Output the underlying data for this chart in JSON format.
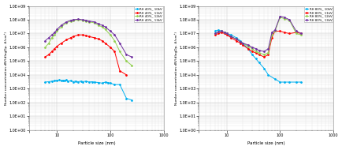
{
  "left_plot": {
    "xlabel": "Particle size (nm)",
    "ylabel": "Number concentration dN/(dlogDp, #/cm³)",
    "legend": [
      "RH 40%_ 10kV",
      "RH 40%_ 11kV",
      "RH 40%_ 12kV",
      "RH 40%_ 13kV"
    ],
    "colors": [
      "#00b0f0",
      "#ff0000",
      "#92d050",
      "#7030a0"
    ],
    "xlim": [
      3,
      1000
    ],
    "ylim": [
      1.0,
      1000000000.0
    ],
    "yticks": [
      1.0,
      10.0,
      100.0,
      1000.0,
      10000.0,
      100000.0,
      1000000.0,
      10000000.0,
      100000000.0,
      1000000000.0
    ],
    "ytick_labels": [
      "1.0E+00",
      "1.0E+01",
      "1.0E+02",
      "1.0E+03",
      "1.0E+04",
      "1.0E+05",
      "1.0E+06",
      "1.0E+07",
      "1.0E+08",
      "1.0E+09"
    ],
    "series": {
      "10kV": {
        "x": [
          6,
          7,
          8,
          9,
          10,
          11,
          12,
          13,
          14,
          15,
          16,
          18,
          20,
          22,
          25,
          28,
          30,
          35,
          40,
          45,
          50,
          60,
          70,
          80,
          90,
          100,
          120,
          150,
          200,
          250
        ],
        "y": [
          3000.0,
          3200.0,
          3500.0,
          3800.0,
          4000.0,
          4200.0,
          3800.0,
          4000.0,
          3800.0,
          4200.0,
          3500.0,
          3800.0,
          3200.0,
          3500.0,
          3200.0,
          3500.0,
          3200.0,
          3500.0,
          3000.0,
          3200.0,
          3000.0,
          2800.0,
          2500.0,
          3000.0,
          2800.0,
          2500.0,
          2000.0,
          2000.0,
          200.0,
          150.0
        ]
      },
      "11kV": {
        "x": [
          6,
          7,
          8,
          9,
          10,
          12,
          15,
          18,
          20,
          25,
          30,
          35,
          40,
          50,
          60,
          70,
          80,
          100,
          120,
          150,
          200
        ],
        "y": [
          200000.0,
          300000.0,
          500000.0,
          800000.0,
          1200000.0,
          2000000.0,
          3500000.0,
          5000000.0,
          6000000.0,
          8000000.0,
          8000000.0,
          7000000.0,
          6000000.0,
          5000000.0,
          4000000.0,
          3000000.0,
          2000000.0,
          1000000.0,
          500000.0,
          20000.0,
          10000.0
        ]
      },
      "12kV": {
        "x": [
          6,
          7,
          8,
          9,
          10,
          12,
          15,
          18,
          20,
          25,
          30,
          35,
          40,
          50,
          60,
          70,
          80,
          100,
          120,
          150,
          200,
          250
        ],
        "y": [
          1000000.0,
          2000000.0,
          5000000.0,
          8000000.0,
          15000000.0,
          30000000.0,
          60000000.0,
          80000000.0,
          90000000.0,
          100000000.0,
          90000000.0,
          80000000.0,
          70000000.0,
          60000000.0,
          40000000.0,
          30000000.0,
          20000000.0,
          8000000.0,
          3000000.0,
          500000.0,
          100000.0,
          50000.0
        ]
      },
      "13kV": {
        "x": [
          6,
          7,
          8,
          9,
          10,
          12,
          15,
          18,
          20,
          25,
          30,
          35,
          40,
          50,
          60,
          70,
          80,
          100,
          120,
          150,
          200,
          250
        ],
        "y": [
          3000000.0,
          5000000.0,
          8000000.0,
          12000000.0,
          20000000.0,
          40000000.0,
          70000000.0,
          90000000.0,
          100000000.0,
          110000000.0,
          100000000.0,
          90000000.0,
          80000000.0,
          70000000.0,
          50000000.0,
          40000000.0,
          30000000.0,
          15000000.0,
          8000000.0,
          2000000.0,
          300000.0,
          200000.0
        ]
      }
    }
  },
  "right_plot": {
    "xlabel": "Particle size (nm)",
    "ylabel": "Number concentration dN/(dlogDp, #/cm³)",
    "legend": [
      "RH 80%_ 10kV",
      "RH 80%_ 11kV",
      "RH 80%_ 12kV",
      "RH 80%_ 13kV"
    ],
    "colors": [
      "#00b0f0",
      "#ff0000",
      "#92d050",
      "#7030a0"
    ],
    "xlim": [
      3,
      1000
    ],
    "ylim": [
      1.0,
      1000000000.0
    ],
    "yticks": [
      1.0,
      10.0,
      100.0,
      1000.0,
      10000.0,
      100000.0,
      1000000.0,
      10000000.0,
      100000000.0,
      1000000000.0
    ],
    "ytick_labels": [
      "1.0E+00",
      "1.0E+01",
      "1.0E+02",
      "1.0E+03",
      "1.0E+04",
      "1.0E+05",
      "1.0E+06",
      "1.0E+07",
      "1.0E+08",
      "1.0E+09"
    ],
    "series": {
      "10kV": {
        "x": [
          6,
          7,
          8,
          9,
          10,
          12,
          15,
          18,
          20,
          25,
          30,
          35,
          40,
          50,
          60,
          80,
          100,
          120,
          150,
          200,
          250
        ],
        "y": [
          15000000.0,
          18000000.0,
          15000000.0,
          12000000.0,
          10000000.0,
          8000000.0,
          5000000.0,
          3000000.0,
          2000000.0,
          800000.0,
          300000.0,
          150000.0,
          80000.0,
          30000.0,
          10000.0,
          5000.0,
          3000.0,
          3000.0,
          3000.0,
          3000.0,
          3000.0
        ]
      },
      "11kV": {
        "x": [
          6,
          7,
          8,
          9,
          10,
          12,
          15,
          18,
          20,
          25,
          30,
          35,
          40,
          50,
          60,
          70,
          80,
          100,
          120,
          150,
          200,
          250
        ],
        "y": [
          8000000.0,
          10000000.0,
          12000000.0,
          10000000.0,
          8000000.0,
          5000000.0,
          3000000.0,
          2000000.0,
          1500000.0,
          800000.0,
          500000.0,
          400000.0,
          300000.0,
          200000.0,
          300000.0,
          5000000.0,
          15000000.0,
          15000000.0,
          12000000.0,
          10000000.0,
          12000000.0,
          10000000.0
        ]
      },
      "12kV": {
        "x": [
          6,
          7,
          8,
          9,
          10,
          12,
          15,
          18,
          20,
          25,
          30,
          35,
          40,
          50,
          60,
          70,
          80,
          100,
          120,
          150,
          200,
          250
        ],
        "y": [
          10000000.0,
          13000000.0,
          15000000.0,
          12000000.0,
          10000000.0,
          6000000.0,
          4000000.0,
          2500000.0,
          2000000.0,
          1200000.0,
          800000.0,
          500000.0,
          400000.0,
          300000.0,
          400000.0,
          8000000.0,
          15000000.0,
          150000000.0,
          120000000.0,
          90000000.0,
          10000000.0,
          8000000.0
        ]
      },
      "13kV": {
        "x": [
          6,
          7,
          8,
          9,
          10,
          12,
          15,
          18,
          20,
          25,
          30,
          35,
          40,
          50,
          60,
          70,
          80,
          100,
          120,
          150,
          200,
          250
        ],
        "y": [
          10000000.0,
          13000000.0,
          15000000.0,
          12000000.0,
          10000000.0,
          6000000.0,
          4000000.0,
          2500000.0,
          2000000.0,
          1500000.0,
          1000000.0,
          800000.0,
          600000.0,
          500000.0,
          800000.0,
          12000000.0,
          18000000.0,
          180000000.0,
          150000000.0,
          100000000.0,
          15000000.0,
          10000000.0
        ]
      }
    }
  }
}
